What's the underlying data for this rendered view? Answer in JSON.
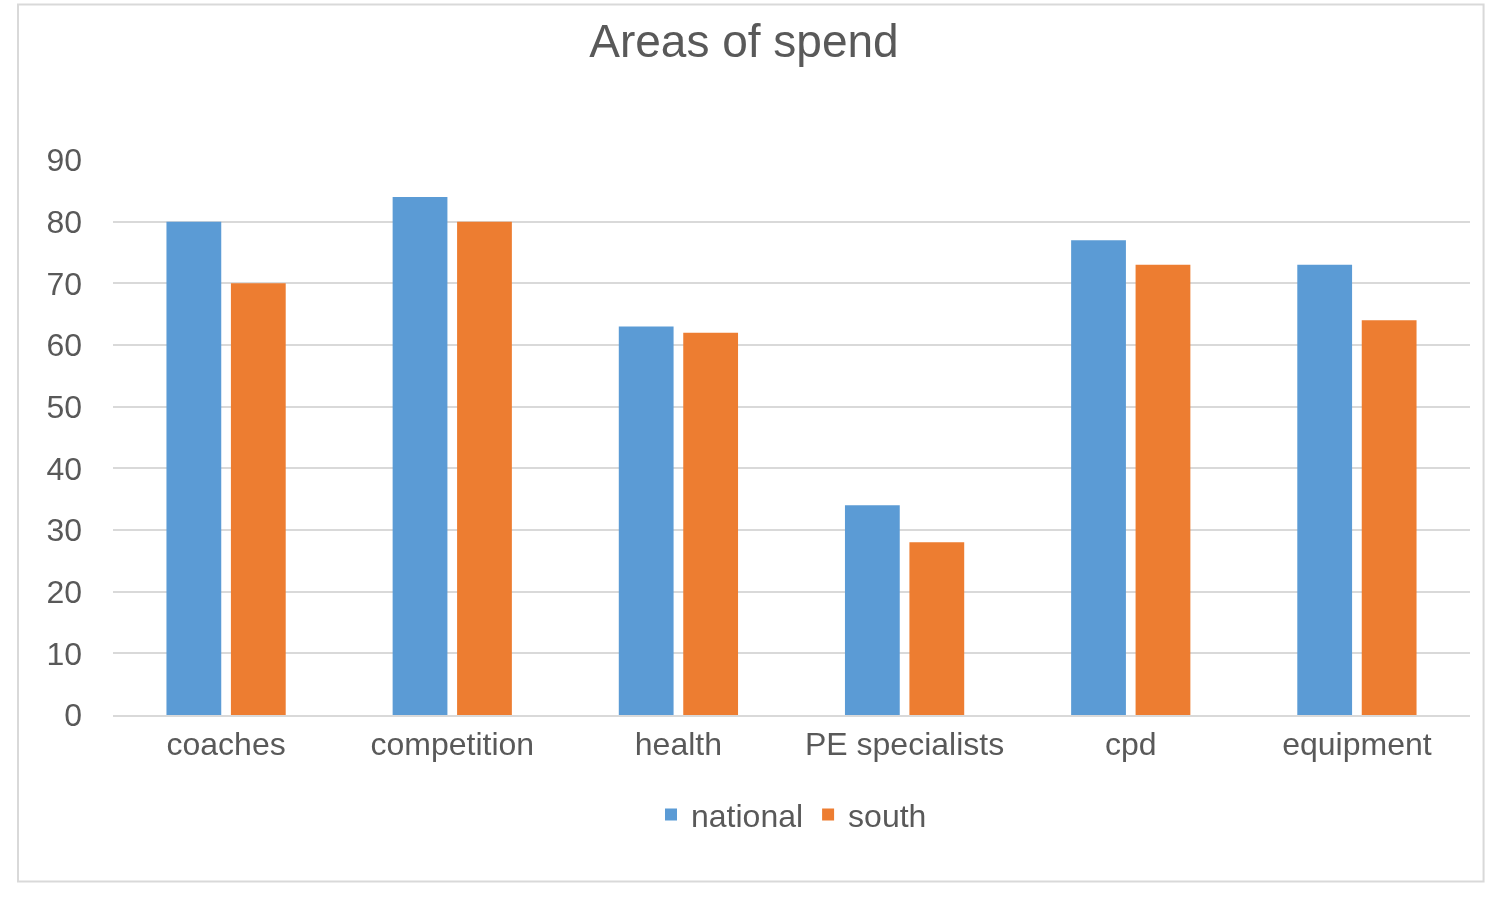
{
  "chart_data": {
    "type": "bar",
    "title": "Areas of spend",
    "categories": [
      "coaches",
      "competition",
      "health",
      "PE specialists",
      "cpd",
      "equipment"
    ],
    "series": [
      {
        "name": "national",
        "color": "#5b9bd5",
        "values": [
          80,
          84,
          63,
          34,
          77,
          73
        ]
      },
      {
        "name": "south",
        "color": "#ed7d31",
        "values": [
          70,
          80,
          62,
          28,
          73,
          64
        ]
      }
    ],
    "ylim": [
      0,
      90
    ],
    "yticks": [
      0,
      10,
      20,
      30,
      40,
      50,
      60,
      70,
      80,
      90
    ],
    "grid": "y",
    "legend": "bottom"
  }
}
